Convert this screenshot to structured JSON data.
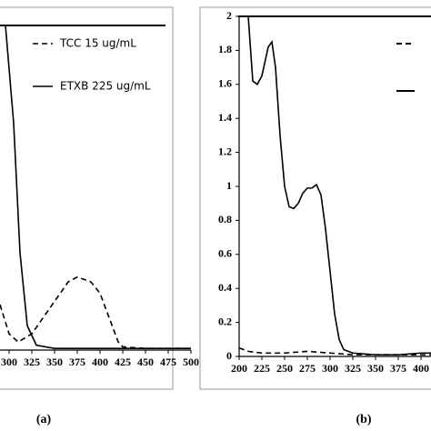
{
  "chart_data": [
    {
      "type": "line",
      "label": "(a)",
      "xlim": [
        290,
        500
      ],
      "xticks": [
        300,
        325,
        350,
        375,
        400,
        425,
        450,
        475,
        500
      ],
      "ylim": [
        0,
        2
      ],
      "series": [
        {
          "name": "TCC 15 ug/mL",
          "color": "#000000",
          "dash": true,
          "x": [
            290,
            300,
            310,
            325,
            350,
            365,
            375,
            390,
            400,
            410,
            420,
            425,
            450,
            500
          ],
          "values": [
            0.28,
            0.1,
            0.05,
            0.1,
            0.3,
            0.42,
            0.45,
            0.42,
            0.35,
            0.2,
            0.05,
            0.02,
            0.01,
            0.01
          ]
        },
        {
          "name": "ETXB 225 ug/mL",
          "color": "#000000",
          "dash": false,
          "x": [
            296,
            305,
            312,
            320,
            330,
            350,
            400,
            450,
            500
          ],
          "values": [
            2,
            1.4,
            0.6,
            0.15,
            0.03,
            0.01,
            0.01,
            0.01,
            0.01
          ]
        }
      ]
    },
    {
      "type": "line",
      "label": "(b)",
      "xlim": [
        200,
        411
      ],
      "xticks": [
        200,
        225,
        250,
        275,
        300,
        325,
        350,
        375,
        400
      ],
      "ylim": [
        0,
        2
      ],
      "yticks": [
        0,
        0.2,
        0.4,
        0.6,
        0.8,
        1,
        1.2,
        1.4,
        1.6,
        1.8,
        2
      ],
      "series": [
        {
          "color": "#000000",
          "dash": true,
          "x": [
            200,
            210,
            225,
            250,
            275,
            300,
            325,
            350,
            411
          ],
          "values": [
            0.05,
            0.03,
            0.02,
            0.02,
            0.03,
            0.02,
            0.01,
            0.01,
            0.01
          ]
        },
        {
          "color": "#000000",
          "dash": false,
          "x": [
            210,
            215,
            220,
            225,
            232,
            236,
            240,
            245,
            250,
            255,
            260,
            265,
            270,
            275,
            280,
            285,
            290,
            295,
            300,
            305,
            310,
            315,
            325,
            350,
            375,
            400,
            411
          ],
          "values": [
            2,
            1.62,
            1.6,
            1.65,
            1.82,
            1.85,
            1.7,
            1.3,
            1.0,
            0.88,
            0.87,
            0.9,
            0.96,
            0.99,
            0.99,
            1.01,
            0.95,
            0.75,
            0.5,
            0.25,
            0.1,
            0.04,
            0.02,
            0.01,
            0.01,
            0.02,
            0.02
          ]
        }
      ]
    }
  ]
}
